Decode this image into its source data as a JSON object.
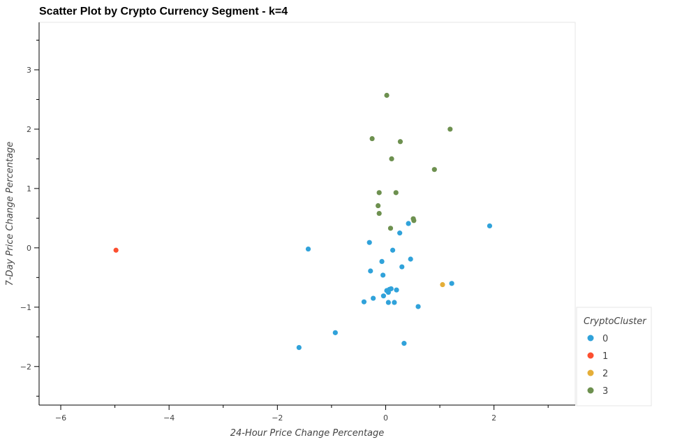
{
  "chart_data": {
    "type": "scatter",
    "title": "Scatter Plot by Crypto Currency Segment - k=4",
    "xlabel": "24-Hour Price Change Percentage",
    "ylabel": "7-Day Price Change Percentage",
    "xlim": [
      -6.4,
      3.5
    ],
    "ylim": [
      -2.65,
      3.8
    ],
    "xticks": [
      -6,
      -4,
      -2,
      0,
      2
    ],
    "yticks": [
      -2,
      -1,
      0,
      1,
      2,
      3
    ],
    "xtick_labels": [
      "−6",
      "−4",
      "−2",
      "0",
      "2"
    ],
    "ytick_labels": [
      "−2",
      "−1",
      "0",
      "1",
      "2",
      "3"
    ],
    "grid": false,
    "legend": {
      "title": "CryptoCluster",
      "placement": "bottom-right"
    },
    "series": [
      {
        "name": "0",
        "color": "#30a2da",
        "points": [
          [
            -1.43,
            -0.02
          ],
          [
            -1.6,
            -1.68
          ],
          [
            -0.93,
            -1.43
          ],
          [
            -0.3,
            0.09
          ],
          [
            -0.28,
            -0.39
          ],
          [
            -0.23,
            -0.85
          ],
          [
            -0.4,
            -0.91
          ],
          [
            -0.07,
            -0.23
          ],
          [
            -0.05,
            -0.46
          ],
          [
            -0.04,
            -0.81
          ],
          [
            0.02,
            -0.72
          ],
          [
            0.05,
            -0.75
          ],
          [
            0.07,
            -0.7
          ],
          [
            0.1,
            -0.69
          ],
          [
            0.05,
            -0.92
          ],
          [
            0.13,
            -0.04
          ],
          [
            0.16,
            -0.92
          ],
          [
            0.2,
            -0.71
          ],
          [
            0.26,
            0.25
          ],
          [
            0.3,
            -0.32
          ],
          [
            0.34,
            -1.61
          ],
          [
            0.42,
            0.41
          ],
          [
            0.46,
            -0.19
          ],
          [
            0.6,
            -0.99
          ],
          [
            1.22,
            -0.6
          ],
          [
            1.92,
            0.37
          ]
        ]
      },
      {
        "name": "1",
        "color": "#fc4f30",
        "points": [
          [
            -4.98,
            -0.04
          ]
        ]
      },
      {
        "name": "2",
        "color": "#e5ae38",
        "points": [
          [
            1.05,
            -0.62
          ]
        ]
      },
      {
        "name": "3",
        "color": "#6d904f",
        "points": [
          [
            0.02,
            2.57
          ],
          [
            -0.25,
            1.84
          ],
          [
            0.27,
            1.79
          ],
          [
            1.19,
            2.0
          ],
          [
            0.11,
            1.5
          ],
          [
            0.9,
            1.32
          ],
          [
            -0.12,
            0.93
          ],
          [
            0.19,
            0.93
          ],
          [
            -0.14,
            0.71
          ],
          [
            -0.12,
            0.58
          ],
          [
            0.09,
            0.33
          ],
          [
            0.51,
            0.49
          ],
          [
            0.52,
            0.46
          ]
        ]
      }
    ]
  }
}
